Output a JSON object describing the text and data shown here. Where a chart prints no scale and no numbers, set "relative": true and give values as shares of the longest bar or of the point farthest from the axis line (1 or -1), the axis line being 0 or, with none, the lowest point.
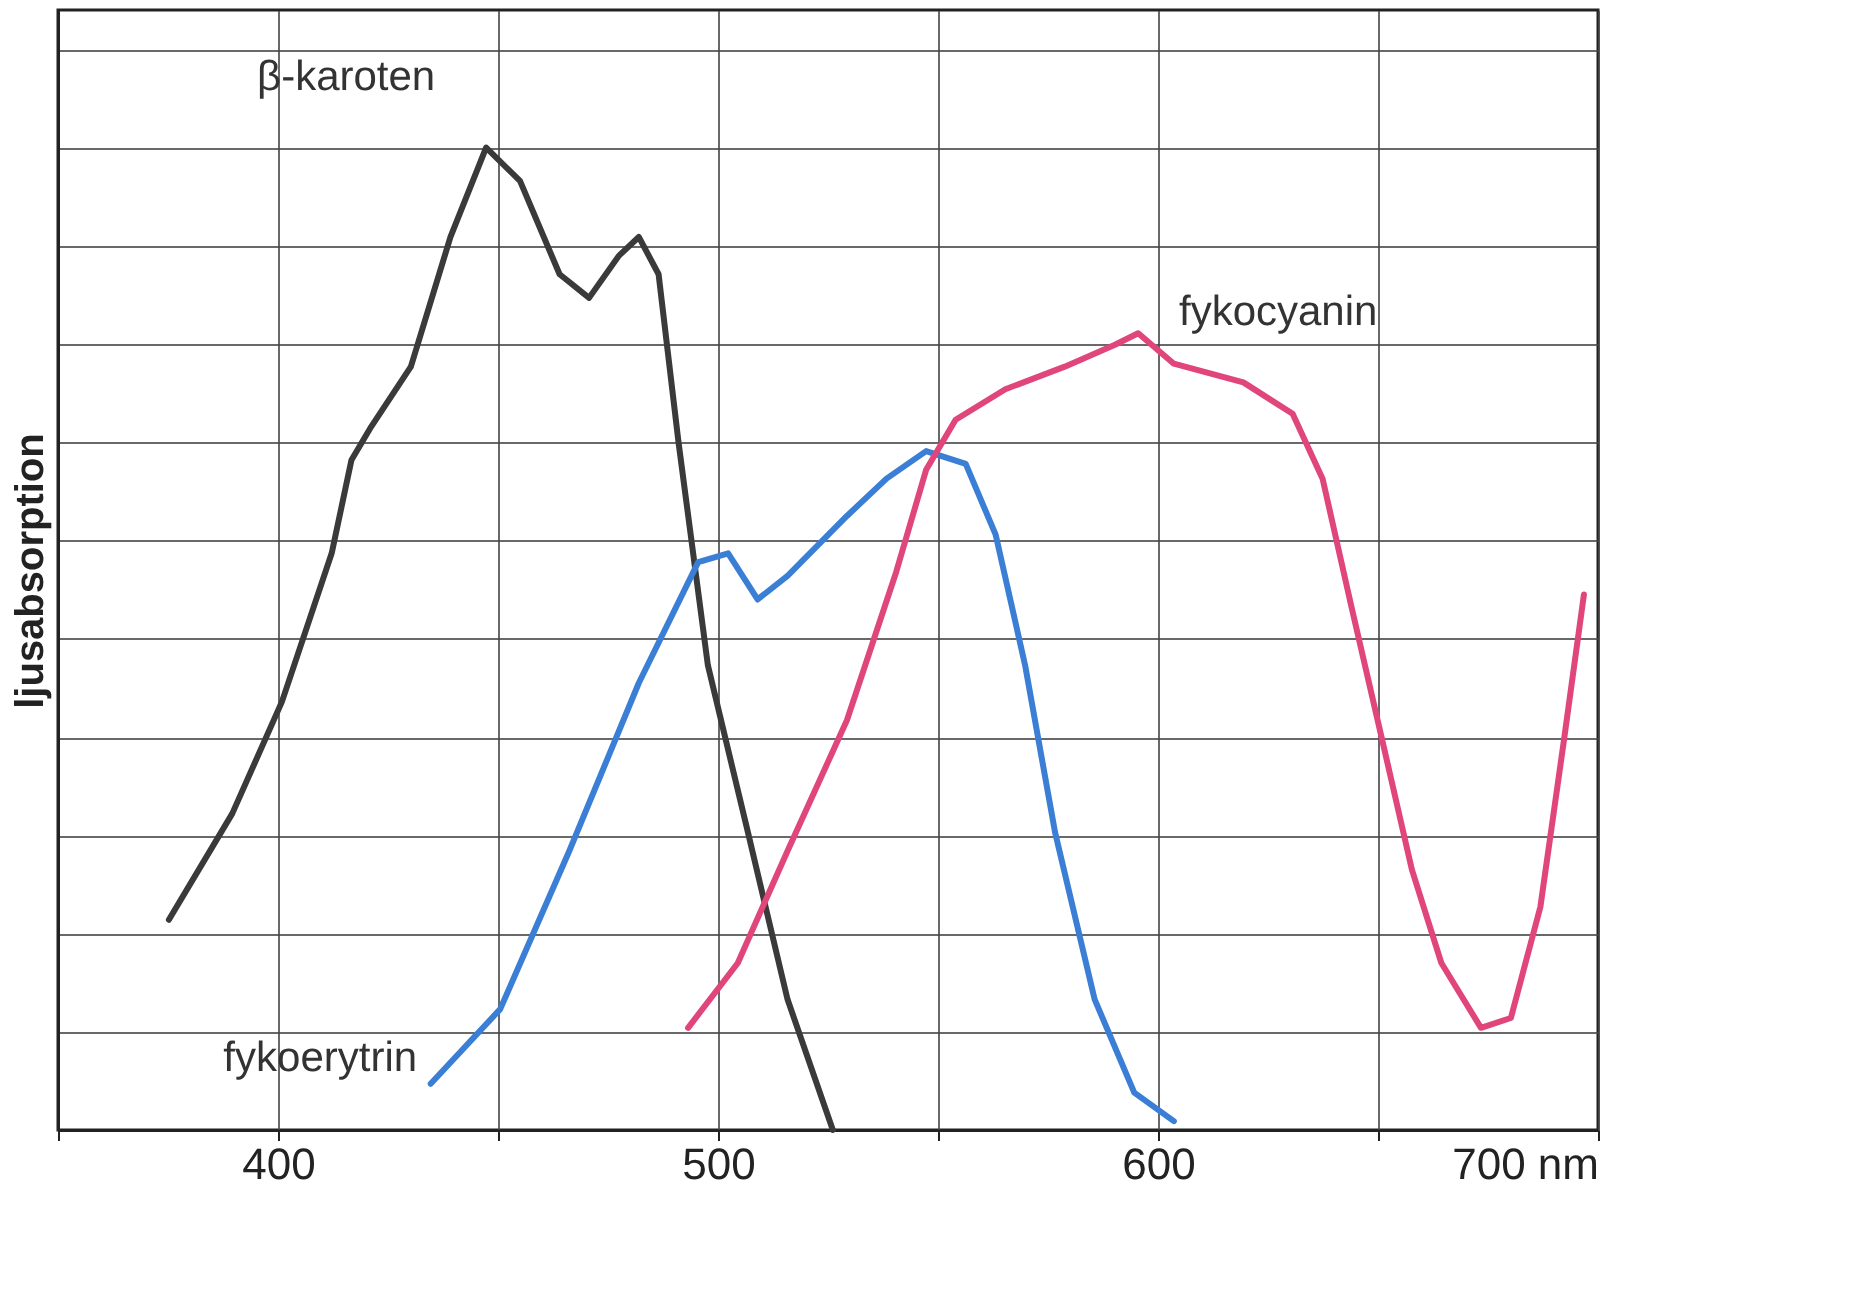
{
  "chart_data": {
    "type": "line",
    "relative": true,
    "ylabel": "ljusabsorption",
    "xlim": [
      350,
      700
    ],
    "xticks": [
      {
        "value": 350,
        "label": null
      },
      400,
      {
        "value": 450,
        "label": null
      },
      500,
      {
        "value": 550,
        "label": null
      },
      600,
      {
        "value": 650,
        "label": null
      },
      {
        "value": 700,
        "label": "700 nm"
      }
    ],
    "grid": true,
    "marker": "none",
    "line_style": "solid",
    "series": [
      {
        "name": "β-karoten",
        "color": "#3a3a3a",
        "x": [
          375.2,
          389.6,
          400.9,
          412.2,
          416.7,
          421.2,
          430.2,
          439.2,
          447.3,
          455,
          464,
          470.7,
          477.5,
          482,
          486.5,
          491,
          497.7,
          506.8,
          515.8,
          526.1
        ],
        "values": [
          0.214,
          0.322,
          0.436,
          0.587,
          0.682,
          0.716,
          0.777,
          0.909,
          1.0,
          0.966,
          0.871,
          0.847,
          0.89,
          0.909,
          0.871,
          0.701,
          0.473,
          0.303,
          0.133,
          0
        ]
      },
      {
        "name": "fykoerytrin",
        "color": "#3a7fd5",
        "x": [
          434.7,
          450.5,
          466.2,
          482,
          495.5,
          502.3,
          509,
          515.8,
          529.3,
          538.3,
          547.3,
          556.3,
          563.1,
          569.8,
          576.6,
          585.6,
          594.6,
          603.6
        ],
        "values": [
          0.047,
          0.123,
          0.284,
          0.455,
          0.578,
          0.587,
          0.54,
          0.564,
          0.625,
          0.663,
          0.691,
          0.678,
          0.606,
          0.473,
          0.303,
          0.133,
          0.038,
          0.009
        ]
      },
      {
        "name": "fykocyanin",
        "color": "#e0457b",
        "x": [
          493.2,
          504.5,
          515.8,
          529.3,
          540.5,
          547.3,
          554,
          565.3,
          578.8,
          590.1,
          595.5,
          603.6,
          619.4,
          630.6,
          637.4,
          644.1,
          650.9,
          657.7,
          664.4,
          673.4,
          680.2,
          686.9,
          692.3,
          696.8
        ],
        "values": [
          0.104,
          0.17,
          0.284,
          0.417,
          0.568,
          0.672,
          0.723,
          0.754,
          0.777,
          0.799,
          0.811,
          0.78,
          0.761,
          0.729,
          0.663,
          0.53,
          0.398,
          0.265,
          0.17,
          0.104,
          0.114,
          0.227,
          0.398,
          0.545
        ]
      }
    ]
  }
}
